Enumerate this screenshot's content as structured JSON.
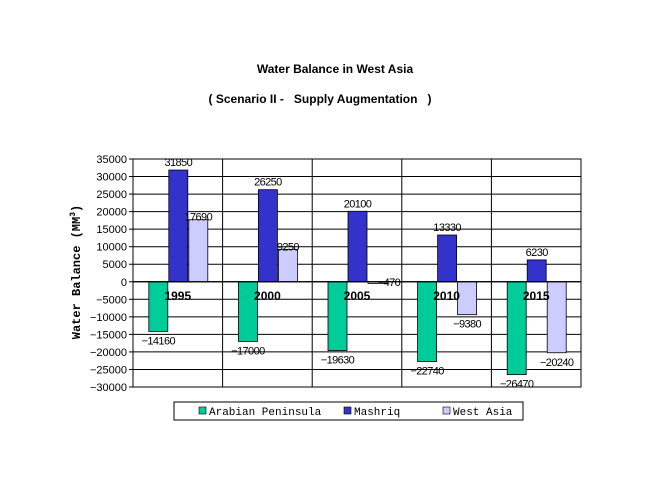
{
  "chart_data": {
    "type": "bar",
    "title": "Water Balance in West Asia",
    "subtitle": "( Scenario II -   Supply Augmentation   )",
    "ylabel": "Water Balance (MM",
    "ylabel_sup": "3",
    "ylabel_close": ")",
    "xlabel": "",
    "categories": [
      "1995",
      "2000",
      "2005",
      "2010",
      "2015"
    ],
    "ylim": [
      -30000,
      35000
    ],
    "yticks": [
      "35000",
      "30000",
      "25000",
      "20000",
      "15000",
      "10000",
      "5000",
      "0",
      "−5000",
      "−10000",
      "−15000",
      "−20000",
      "−25000",
      "−30000"
    ],
    "ytick_values": [
      35000,
      30000,
      25000,
      20000,
      15000,
      10000,
      5000,
      0,
      -5000,
      -10000,
      -15000,
      -20000,
      -25000,
      -30000
    ],
    "grid": true,
    "legend_position": "bottom",
    "series": [
      {
        "name": "Arabian Peninsula",
        "color": "#00cc99",
        "values": [
          -14160,
          -17000,
          -19630,
          -22740,
          -26470
        ],
        "labels": [
          "−14160",
          "−17000",
          "−19630",
          "−22740",
          "−26470"
        ]
      },
      {
        "name": "Mashriq",
        "color": "#3333cc",
        "values": [
          31850,
          26250,
          20100,
          13330,
          6230
        ],
        "labels": [
          "31850",
          "26250",
          "20100",
          "13330",
          "6230"
        ]
      },
      {
        "name": "West Asia",
        "color": "#ccccff",
        "values": [
          17690,
          9250,
          -470,
          -9380,
          -20240
        ],
        "labels": [
          "17690",
          "9250",
          "−470",
          "−9380",
          "−20240"
        ]
      }
    ]
  }
}
